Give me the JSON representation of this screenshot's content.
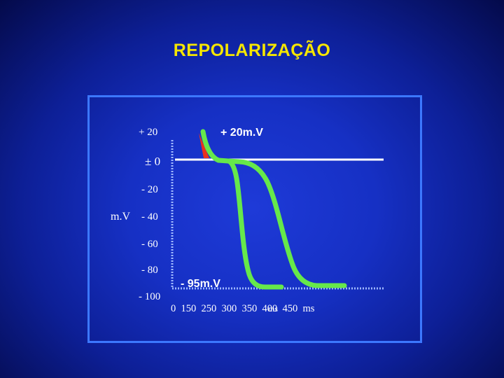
{
  "title": "REPOLARIZAÇÃO",
  "y_axis": {
    "label": "m.V",
    "ticks": [
      "+ 20",
      "± 0",
      "- 20",
      "- 40",
      "- 60",
      "- 80",
      "- 100"
    ]
  },
  "x_axis": {
    "ticks_text": "0  150  250  300  350  400  450  ms",
    "overlap_text": "ms"
  },
  "annotations": {
    "peak": "+ 20m.V",
    "rest": "- 95m.V"
  },
  "colors": {
    "background": "#1630c4",
    "title": "#f5e600",
    "panel_border": "#3c78ff",
    "curve": "#66e84a",
    "spike": "#e8321e",
    "baseline": "#ffffff"
  }
}
